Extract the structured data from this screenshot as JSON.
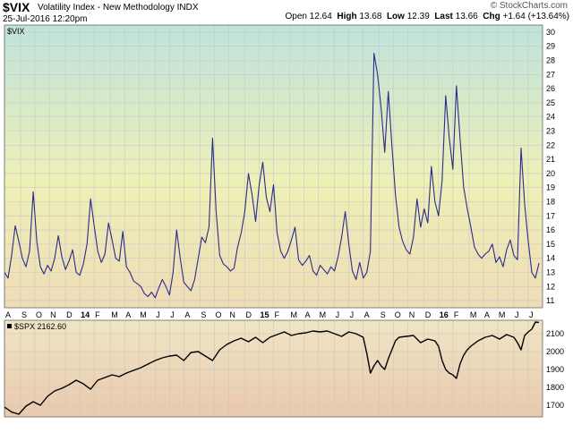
{
  "header": {
    "symbol": "$VIX",
    "description": "Volatility Index - New Methodology  INDX",
    "date": "25-Jul-2016 12:20pm",
    "watermark": "© StockCharts.com",
    "open_label": "Open",
    "open": "12.64",
    "high_label": "High",
    "high": "13.68",
    "low_label": "Low",
    "low": "12.39",
    "last_label": "Last",
    "last": "13.66",
    "chg_label": "Chg",
    "chg": "+1.64 (+13.64%)"
  },
  "colors": {
    "vix_line": "#2b2b8c",
    "spx_line": "#000000",
    "upper_bg_top": "#bfe3dc",
    "upper_bg_mid": "#eef0b6",
    "upper_bg_bottom": "#efdcb6",
    "lower_bg_top": "#efe5c4",
    "lower_bg_bottom": "#eac9ae"
  },
  "chart_data": [
    {
      "type": "line",
      "legend": "$VIX",
      "ylim": [
        10.5,
        30.5
      ],
      "ticks": [
        11,
        12,
        13,
        14,
        15,
        16,
        17,
        18,
        19,
        20,
        21,
        22,
        23,
        24,
        25,
        26,
        27,
        28,
        29,
        30
      ],
      "xlim": [
        2013.58,
        2016.58
      ],
      "x_tick_labels": [
        {
          "x": 2013.58,
          "label": "A"
        },
        {
          "x": 2013.67,
          "label": "S"
        },
        {
          "x": 2013.75,
          "label": "O"
        },
        {
          "x": 2013.83,
          "label": "N"
        },
        {
          "x": 2013.92,
          "label": "D"
        },
        {
          "x": 2014.0,
          "label": "14"
        },
        {
          "x": 2014.08,
          "label": "F"
        },
        {
          "x": 2014.17,
          "label": "M"
        },
        {
          "x": 2014.25,
          "label": "A"
        },
        {
          "x": 2014.33,
          "label": "M"
        },
        {
          "x": 2014.42,
          "label": "J"
        },
        {
          "x": 2014.5,
          "label": "J"
        },
        {
          "x": 2014.58,
          "label": "A"
        },
        {
          "x": 2014.67,
          "label": "S"
        },
        {
          "x": 2014.75,
          "label": "O"
        },
        {
          "x": 2014.83,
          "label": "N"
        },
        {
          "x": 2014.92,
          "label": "D"
        },
        {
          "x": 2015.0,
          "label": "15"
        },
        {
          "x": 2015.08,
          "label": "F"
        },
        {
          "x": 2015.17,
          "label": "M"
        },
        {
          "x": 2015.25,
          "label": "A"
        },
        {
          "x": 2015.33,
          "label": "M"
        },
        {
          "x": 2015.42,
          "label": "J"
        },
        {
          "x": 2015.5,
          "label": "J"
        },
        {
          "x": 2015.58,
          "label": "A"
        },
        {
          "x": 2015.67,
          "label": "S"
        },
        {
          "x": 2015.75,
          "label": "O"
        },
        {
          "x": 2015.83,
          "label": "N"
        },
        {
          "x": 2015.92,
          "label": "D"
        },
        {
          "x": 2016.0,
          "label": "16"
        },
        {
          "x": 2016.08,
          "label": "F"
        },
        {
          "x": 2016.17,
          "label": "M"
        },
        {
          "x": 2016.25,
          "label": "A"
        },
        {
          "x": 2016.33,
          "label": "M"
        },
        {
          "x": 2016.42,
          "label": "J"
        },
        {
          "x": 2016.5,
          "label": "J"
        }
      ],
      "x": [
        2013.58,
        2013.6,
        2013.62,
        2013.64,
        2013.66,
        2013.68,
        2013.7,
        2013.72,
        2013.74,
        2013.76,
        2013.78,
        2013.8,
        2013.82,
        2013.84,
        2013.86,
        2013.88,
        2013.9,
        2013.92,
        2013.94,
        2013.96,
        2013.98,
        2014.0,
        2014.02,
        2014.04,
        2014.06,
        2014.08,
        2014.1,
        2014.12,
        2014.14,
        2014.16,
        2014.18,
        2014.2,
        2014.22,
        2014.24,
        2014.26,
        2014.28,
        2014.3,
        2014.32,
        2014.34,
        2014.36,
        2014.38,
        2014.4,
        2014.42,
        2014.44,
        2014.46,
        2014.48,
        2014.5,
        2014.52,
        2014.54,
        2014.56,
        2014.58,
        2014.6,
        2014.62,
        2014.64,
        2014.66,
        2014.68,
        2014.7,
        2014.72,
        2014.74,
        2014.76,
        2014.78,
        2014.8,
        2014.82,
        2014.84,
        2014.86,
        2014.88,
        2014.9,
        2014.92,
        2014.94,
        2014.96,
        2014.98,
        2015.0,
        2015.02,
        2015.04,
        2015.06,
        2015.08,
        2015.1,
        2015.12,
        2015.14,
        2015.16,
        2015.18,
        2015.2,
        2015.22,
        2015.24,
        2015.26,
        2015.28,
        2015.3,
        2015.32,
        2015.34,
        2015.36,
        2015.38,
        2015.4,
        2015.42,
        2015.44,
        2015.46,
        2015.48,
        2015.5,
        2015.52,
        2015.54,
        2015.56,
        2015.58,
        2015.6,
        2015.62,
        2015.64,
        2015.66,
        2015.68,
        2015.7,
        2015.72,
        2015.74,
        2015.76,
        2015.78,
        2015.8,
        2015.82,
        2015.84,
        2015.86,
        2015.88,
        2015.9,
        2015.92,
        2015.94,
        2015.96,
        2015.98,
        2016.0,
        2016.02,
        2016.04,
        2016.06,
        2016.08,
        2016.1,
        2016.12,
        2016.14,
        2016.16,
        2016.18,
        2016.2,
        2016.22,
        2016.24,
        2016.26,
        2016.28,
        2016.3,
        2016.32,
        2016.34,
        2016.36,
        2016.38,
        2016.4,
        2016.42,
        2016.44,
        2016.46,
        2016.48,
        2016.5,
        2016.52,
        2016.54,
        2016.56
      ],
      "values": [
        13.0,
        12.6,
        14.2,
        16.3,
        15.2,
        14.0,
        13.4,
        14.5,
        18.7,
        15.2,
        13.4,
        12.9,
        13.5,
        13.1,
        14.0,
        15.6,
        14.1,
        13.2,
        13.8,
        14.6,
        13.0,
        12.8,
        13.6,
        15.0,
        18.2,
        16.3,
        14.5,
        13.7,
        14.3,
        16.5,
        15.3,
        14.0,
        13.8,
        15.9,
        13.4,
        13.0,
        12.4,
        12.2,
        12.0,
        11.5,
        11.3,
        11.6,
        11.2,
        11.9,
        12.5,
        12.0,
        11.4,
        13.0,
        16.0,
        14.0,
        12.3,
        12.0,
        11.7,
        12.5,
        14.0,
        15.5,
        15.1,
        16.2,
        22.5,
        17.3,
        14.2,
        13.6,
        13.4,
        13.1,
        13.3,
        14.8,
        15.8,
        17.3,
        20.0,
        18.5,
        16.6,
        19.2,
        20.8,
        18.3,
        17.3,
        19.2,
        15.8,
        14.5,
        14.0,
        14.5,
        15.3,
        16.2,
        13.9,
        13.5,
        13.8,
        14.2,
        13.1,
        12.8,
        13.5,
        13.2,
        12.9,
        13.4,
        13.1,
        14.1,
        15.5,
        17.3,
        15.0,
        13.1,
        12.5,
        13.7,
        12.6,
        13.0,
        14.5,
        28.5,
        27.0,
        24.6,
        21.5,
        25.8,
        22.0,
        18.5,
        16.2,
        15.2,
        14.6,
        14.3,
        15.5,
        18.2,
        16.2,
        17.5,
        16.5,
        20.5,
        18.0,
        17.0,
        19.5,
        25.5,
        22.5,
        20.3,
        26.2,
        22.5,
        19.0,
        17.5,
        16.2,
        14.8,
        14.3,
        14.0,
        14.3,
        14.5,
        15.0,
        13.7,
        14.1,
        13.4,
        14.6,
        15.3,
        14.2,
        13.9,
        21.8,
        17.8,
        15.2,
        13.0,
        12.6,
        13.66
      ]
    },
    {
      "type": "line",
      "legend": "$SPX 2162.60",
      "ylim": [
        1635,
        2175
      ],
      "ticks": [
        1700,
        1800,
        1900,
        2000,
        2100
      ],
      "x": [
        2013.58,
        2013.62,
        2013.66,
        2013.7,
        2013.74,
        2013.78,
        2013.82,
        2013.86,
        2013.9,
        2013.94,
        2013.98,
        2014.02,
        2014.06,
        2014.1,
        2014.14,
        2014.18,
        2014.22,
        2014.26,
        2014.3,
        2014.34,
        2014.38,
        2014.42,
        2014.46,
        2014.5,
        2014.54,
        2014.58,
        2014.62,
        2014.66,
        2014.7,
        2014.74,
        2014.78,
        2014.82,
        2014.86,
        2014.9,
        2014.94,
        2014.98,
        2015.02,
        2015.06,
        2015.1,
        2015.14,
        2015.18,
        2015.22,
        2015.26,
        2015.3,
        2015.34,
        2015.38,
        2015.42,
        2015.46,
        2015.5,
        2015.54,
        2015.58,
        2015.6,
        2015.62,
        2015.64,
        2015.66,
        2015.68,
        2015.7,
        2015.72,
        2015.74,
        2015.76,
        2015.78,
        2015.82,
        2015.86,
        2015.9,
        2015.94,
        2015.98,
        2016.0,
        2016.02,
        2016.04,
        2016.06,
        2016.08,
        2016.1,
        2016.12,
        2016.14,
        2016.16,
        2016.18,
        2016.22,
        2016.26,
        2016.3,
        2016.34,
        2016.38,
        2016.42,
        2016.44,
        2016.46,
        2016.48,
        2016.5,
        2016.52,
        2016.54,
        2016.56
      ],
      "values": [
        1690,
        1662,
        1650,
        1695,
        1720,
        1700,
        1750,
        1780,
        1795,
        1815,
        1840,
        1820,
        1790,
        1840,
        1855,
        1870,
        1860,
        1880,
        1895,
        1910,
        1930,
        1950,
        1965,
        1975,
        1980,
        1950,
        1995,
        2000,
        1975,
        1950,
        2010,
        2040,
        2060,
        2075,
        2055,
        2080,
        2050,
        2080,
        2095,
        2110,
        2090,
        2100,
        2105,
        2115,
        2110,
        2115,
        2100,
        2085,
        2110,
        2100,
        2080,
        1990,
        1880,
        1920,
        1950,
        1920,
        1900,
        1960,
        2010,
        2060,
        2080,
        2085,
        2090,
        2050,
        2070,
        2060,
        2030,
        1950,
        1900,
        1880,
        1870,
        1850,
        1930,
        1980,
        2010,
        2030,
        2060,
        2080,
        2090,
        2070,
        2095,
        2080,
        2050,
        2010,
        2090,
        2110,
        2125,
        2165,
        2162.6
      ]
    }
  ]
}
